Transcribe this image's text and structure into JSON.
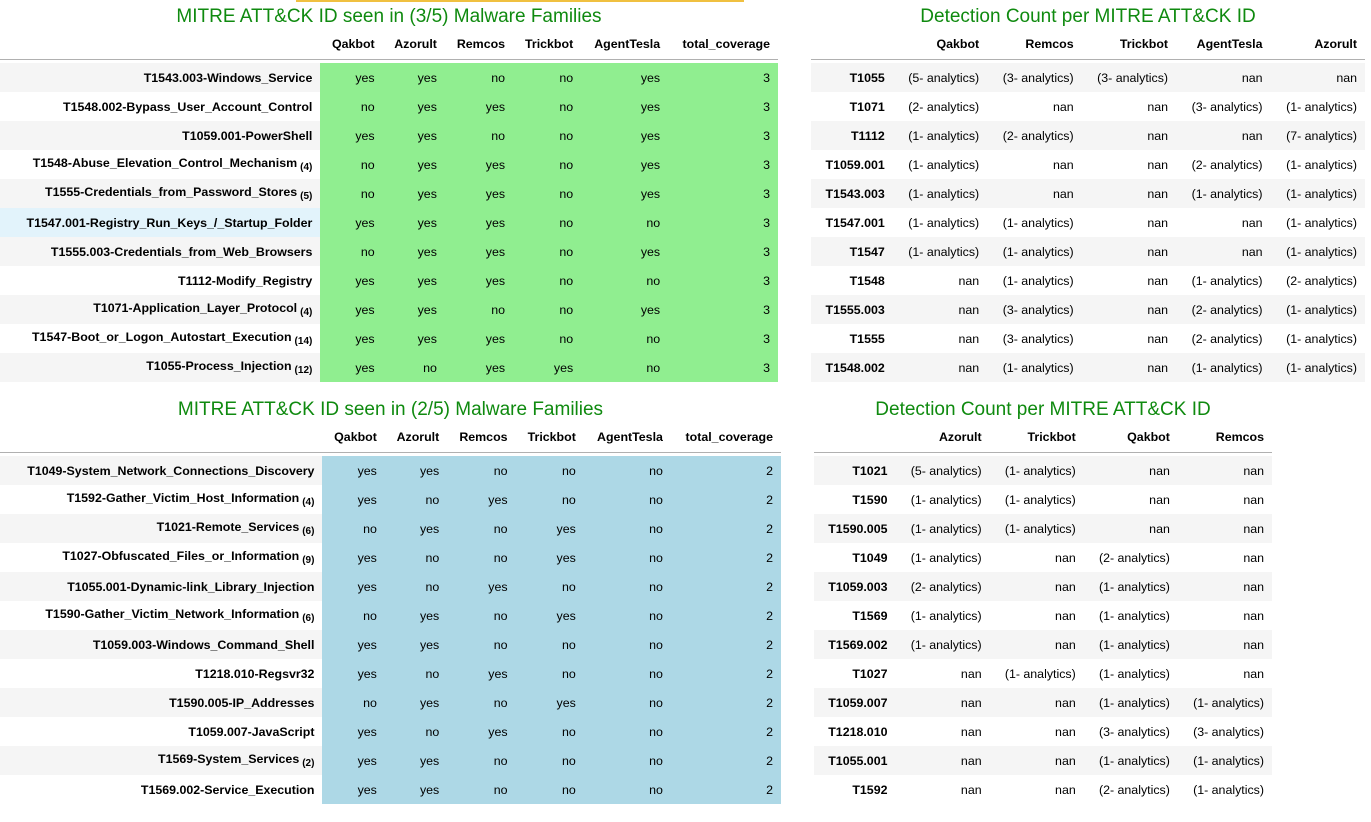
{
  "colors": {
    "title": "#0f8a0f",
    "top_coverage_fill": "#90ee90",
    "bottom_coverage_fill": "#add8e6",
    "accent_bar": "#f0c040"
  },
  "table_top_left": {
    "title": "MITRE ATT&CK ID seen in (3/5) Malware Families",
    "columns": [
      "Qakbot",
      "Azorult",
      "Remcos",
      "Trickbot",
      "AgentTesla",
      "total_coverage"
    ],
    "rows": [
      {
        "label": "T1543.003-Windows_Service",
        "count": "",
        "values": [
          "yes",
          "yes",
          "no",
          "no",
          "yes",
          "3"
        ]
      },
      {
        "label": "T1548.002-Bypass_User_Account_Control",
        "count": "",
        "values": [
          "no",
          "yes",
          "yes",
          "no",
          "yes",
          "3"
        ]
      },
      {
        "label": "T1059.001-PowerShell",
        "count": "",
        "values": [
          "yes",
          "yes",
          "no",
          "no",
          "yes",
          "3"
        ]
      },
      {
        "label": "T1548-Abuse_Elevation_Control_Mechanism",
        "count": "(4)",
        "values": [
          "no",
          "yes",
          "yes",
          "no",
          "yes",
          "3"
        ]
      },
      {
        "label": "T1555-Credentials_from_Password_Stores",
        "count": "(5)",
        "values": [
          "no",
          "yes",
          "yes",
          "no",
          "yes",
          "3"
        ]
      },
      {
        "label": "T1547.001-Registry_Run_Keys_/_Startup_Folder",
        "count": "",
        "values": [
          "yes",
          "yes",
          "yes",
          "no",
          "no",
          "3"
        ]
      },
      {
        "label": "T1555.003-Credentials_from_Web_Browsers",
        "count": "",
        "values": [
          "no",
          "yes",
          "yes",
          "no",
          "yes",
          "3"
        ]
      },
      {
        "label": "T1112-Modify_Registry",
        "count": "",
        "values": [
          "yes",
          "yes",
          "yes",
          "no",
          "no",
          "3"
        ]
      },
      {
        "label": "T1071-Application_Layer_Protocol",
        "count": "(4)",
        "values": [
          "yes",
          "yes",
          "no",
          "no",
          "yes",
          "3"
        ]
      },
      {
        "label": "T1547-Boot_or_Logon_Autostart_Execution",
        "count": "(14)",
        "values": [
          "yes",
          "yes",
          "yes",
          "no",
          "no",
          "3"
        ]
      },
      {
        "label": "T1055-Process_Injection",
        "count": "(12)",
        "values": [
          "yes",
          "no",
          "yes",
          "yes",
          "no",
          "3"
        ]
      }
    ]
  },
  "table_top_right": {
    "title": "Detection Count per MITRE ATT&CK ID",
    "columns": [
      "Qakbot",
      "Remcos",
      "Trickbot",
      "AgentTesla",
      "Azorult"
    ],
    "rows": [
      {
        "label": "T1055",
        "values": [
          "(5- analytics)",
          "(3- analytics)",
          "(3- analytics)",
          "nan",
          "nan"
        ]
      },
      {
        "label": "T1071",
        "values": [
          "(2- analytics)",
          "nan",
          "nan",
          "(3- analytics)",
          "(1- analytics)"
        ]
      },
      {
        "label": "T1112",
        "values": [
          "(1- analytics)",
          "(2- analytics)",
          "nan",
          "nan",
          "(7- analytics)"
        ]
      },
      {
        "label": "T1059.001",
        "values": [
          "(1- analytics)",
          "nan",
          "nan",
          "(2- analytics)",
          "(1- analytics)"
        ]
      },
      {
        "label": "T1543.003",
        "values": [
          "(1- analytics)",
          "nan",
          "nan",
          "(1- analytics)",
          "(1- analytics)"
        ]
      },
      {
        "label": "T1547.001",
        "values": [
          "(1- analytics)",
          "(1- analytics)",
          "nan",
          "nan",
          "(1- analytics)"
        ]
      },
      {
        "label": "T1547",
        "values": [
          "(1- analytics)",
          "(1- analytics)",
          "nan",
          "nan",
          "(1- analytics)"
        ]
      },
      {
        "label": "T1548",
        "values": [
          "nan",
          "(1- analytics)",
          "nan",
          "(1- analytics)",
          "(2- analytics)"
        ]
      },
      {
        "label": "T1555.003",
        "values": [
          "nan",
          "(3- analytics)",
          "nan",
          "(2- analytics)",
          "(1- analytics)"
        ]
      },
      {
        "label": "T1555",
        "values": [
          "nan",
          "(3- analytics)",
          "nan",
          "(2- analytics)",
          "(1- analytics)"
        ]
      },
      {
        "label": "T1548.002",
        "values": [
          "nan",
          "(1- analytics)",
          "nan",
          "(1- analytics)",
          "(1- analytics)"
        ]
      }
    ]
  },
  "table_bottom_left": {
    "title": "MITRE ATT&CK ID seen in (2/5) Malware Families",
    "columns": [
      "Qakbot",
      "Azorult",
      "Remcos",
      "Trickbot",
      "AgentTesla",
      "total_coverage"
    ],
    "rows": [
      {
        "label": "T1049-System_Network_Connections_Discovery",
        "count": "",
        "values": [
          "yes",
          "yes",
          "no",
          "no",
          "no",
          "2"
        ]
      },
      {
        "label": "T1592-Gather_Victim_Host_Information",
        "count": "(4)",
        "values": [
          "yes",
          "no",
          "yes",
          "no",
          "no",
          "2"
        ]
      },
      {
        "label": "T1021-Remote_Services",
        "count": "(6)",
        "values": [
          "no",
          "yes",
          "no",
          "yes",
          "no",
          "2"
        ]
      },
      {
        "label": "T1027-Obfuscated_Files_or_Information",
        "count": "(9)",
        "values": [
          "yes",
          "no",
          "no",
          "yes",
          "no",
          "2"
        ]
      },
      {
        "label": "T1055.001-Dynamic-link_Library_Injection",
        "count": "",
        "values": [
          "yes",
          "no",
          "yes",
          "no",
          "no",
          "2"
        ]
      },
      {
        "label": "T1590-Gather_Victim_Network_Information",
        "count": "(6)",
        "values": [
          "no",
          "yes",
          "no",
          "yes",
          "no",
          "2"
        ]
      },
      {
        "label": "T1059.003-Windows_Command_Shell",
        "count": "",
        "values": [
          "yes",
          "yes",
          "no",
          "no",
          "no",
          "2"
        ]
      },
      {
        "label": "T1218.010-Regsvr32",
        "count": "",
        "values": [
          "yes",
          "no",
          "yes",
          "no",
          "no",
          "2"
        ]
      },
      {
        "label": "T1590.005-IP_Addresses",
        "count": "",
        "values": [
          "no",
          "yes",
          "no",
          "yes",
          "no",
          "2"
        ]
      },
      {
        "label": "T1059.007-JavaScript",
        "count": "",
        "values": [
          "yes",
          "no",
          "yes",
          "no",
          "no",
          "2"
        ]
      },
      {
        "label": "T1569-System_Services",
        "count": "(2)",
        "values": [
          "yes",
          "yes",
          "no",
          "no",
          "no",
          "2"
        ]
      },
      {
        "label": "T1569.002-Service_Execution",
        "count": "",
        "values": [
          "yes",
          "yes",
          "no",
          "no",
          "no",
          "2"
        ]
      }
    ]
  },
  "table_bottom_right": {
    "title": "Detection Count per MITRE ATT&CK ID",
    "columns": [
      "Azorult",
      "Trickbot",
      "Qakbot",
      "Remcos"
    ],
    "rows": [
      {
        "label": "T1021",
        "values": [
          "(5- analytics)",
          "(1- analytics)",
          "nan",
          "nan"
        ]
      },
      {
        "label": "T1590",
        "values": [
          "(1- analytics)",
          "(1- analytics)",
          "nan",
          "nan"
        ]
      },
      {
        "label": "T1590.005",
        "values": [
          "(1- analytics)",
          "(1- analytics)",
          "nan",
          "nan"
        ]
      },
      {
        "label": "T1049",
        "values": [
          "(1- analytics)",
          "nan",
          "(2- analytics)",
          "nan"
        ]
      },
      {
        "label": "T1059.003",
        "values": [
          "(2- analytics)",
          "nan",
          "(1- analytics)",
          "nan"
        ]
      },
      {
        "label": "T1569",
        "values": [
          "(1- analytics)",
          "nan",
          "(1- analytics)",
          "nan"
        ]
      },
      {
        "label": "T1569.002",
        "values": [
          "(1- analytics)",
          "nan",
          "(1- analytics)",
          "nan"
        ]
      },
      {
        "label": "T1027",
        "values": [
          "nan",
          "(1- analytics)",
          "(1- analytics)",
          "nan"
        ]
      },
      {
        "label": "T1059.007",
        "values": [
          "nan",
          "nan",
          "(1- analytics)",
          "(1- analytics)"
        ]
      },
      {
        "label": "T1218.010",
        "values": [
          "nan",
          "nan",
          "(3- analytics)",
          "(3- analytics)"
        ]
      },
      {
        "label": "T1055.001",
        "values": [
          "nan",
          "nan",
          "(1- analytics)",
          "(1- analytics)"
        ]
      },
      {
        "label": "T1592",
        "values": [
          "nan",
          "nan",
          "(2- analytics)",
          "(1- analytics)"
        ]
      }
    ]
  }
}
